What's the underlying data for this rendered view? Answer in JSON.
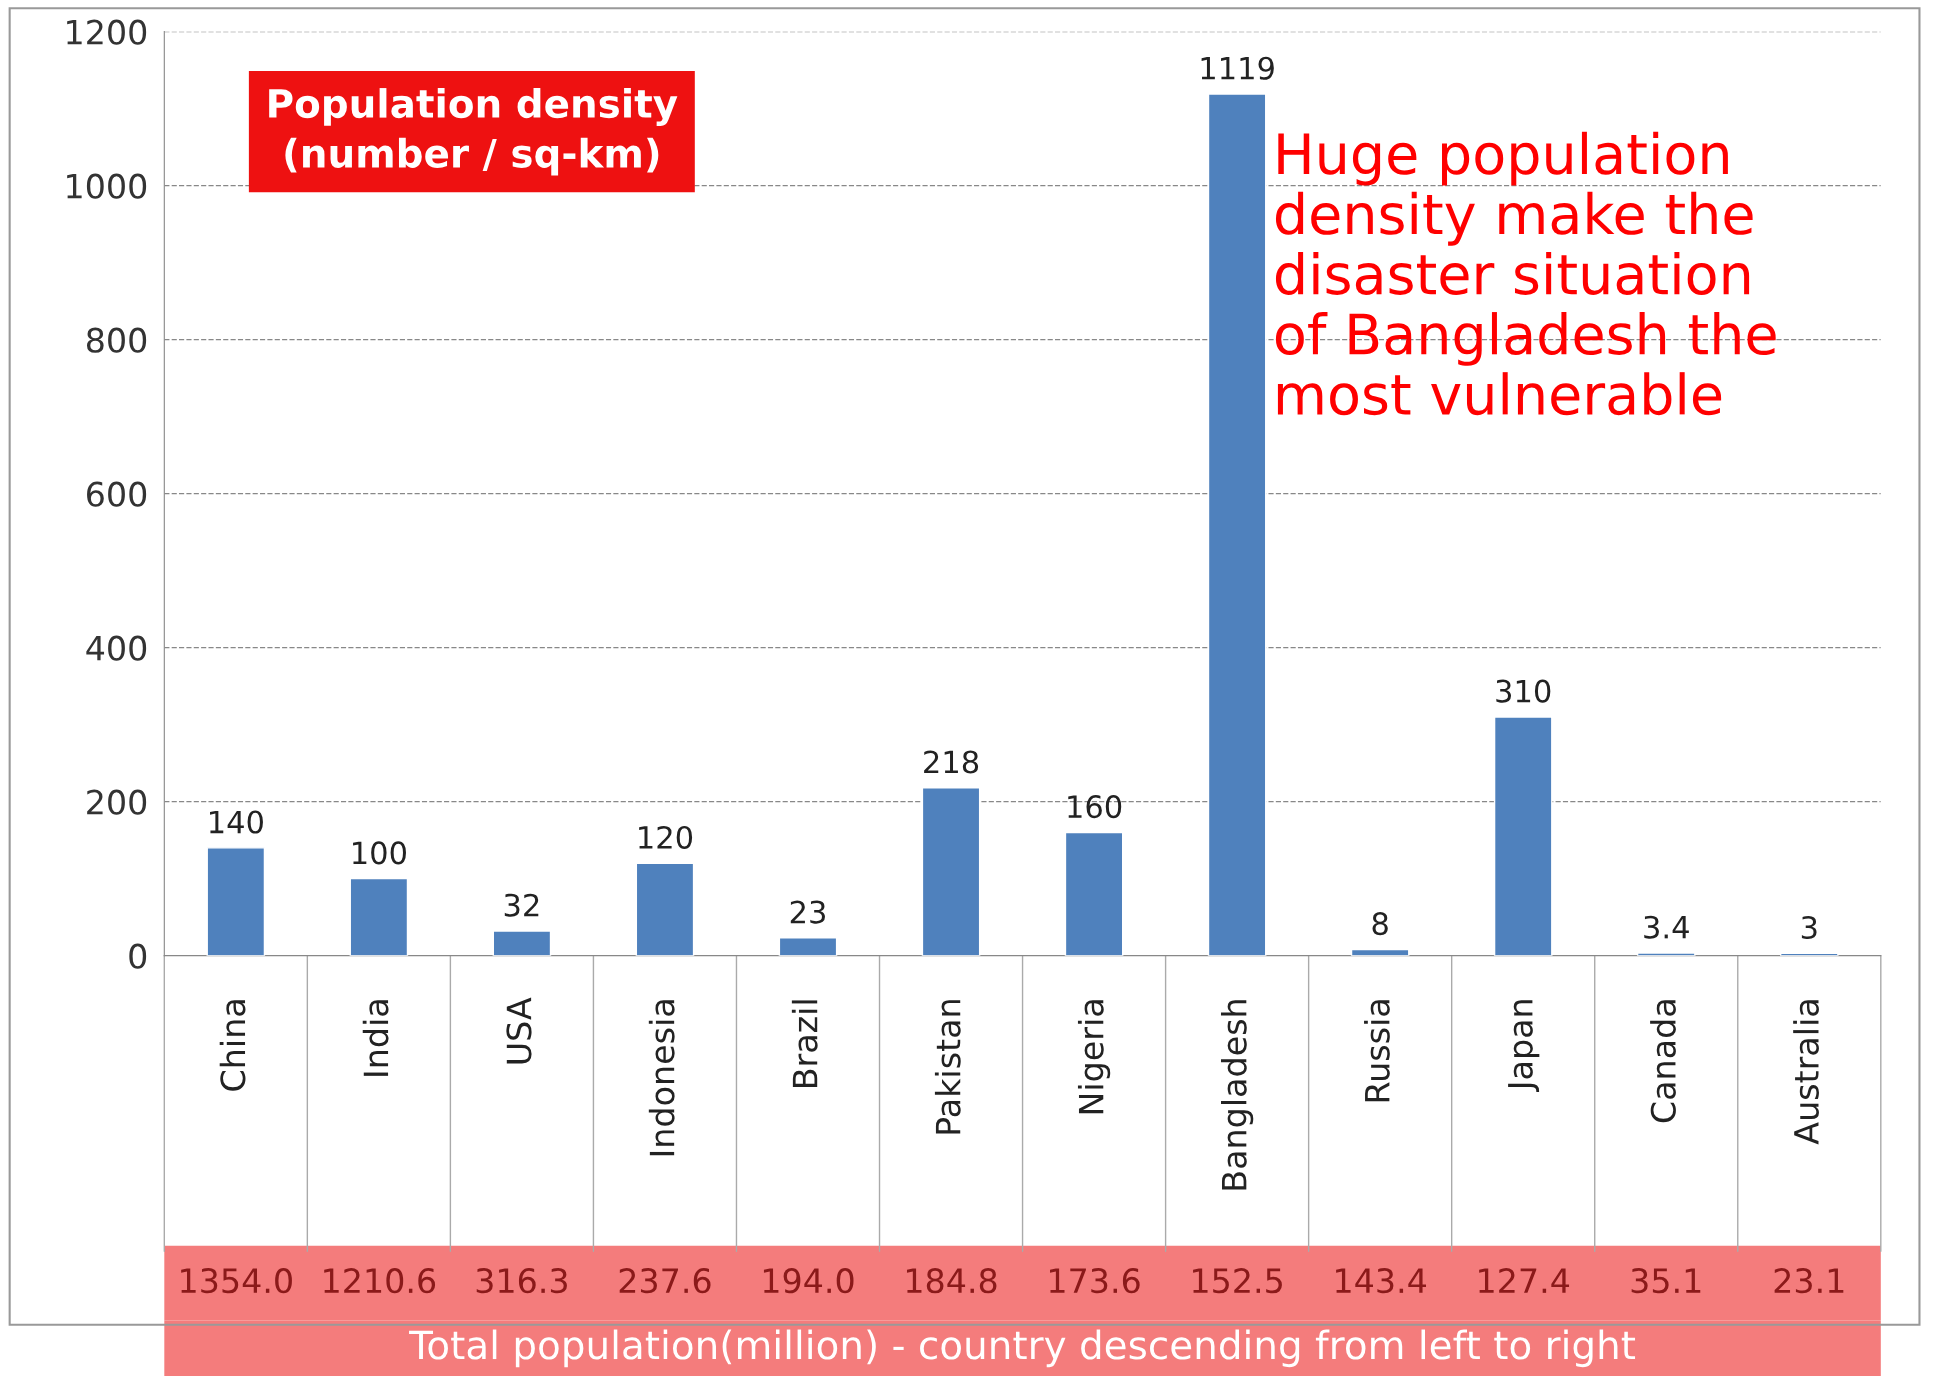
{
  "chart_data": {
    "type": "bar",
    "title": "Population density\n(number / sq-km)",
    "categories": [
      "China",
      "India",
      "USA",
      "Indonesia",
      "Brazil",
      "Pakistan",
      "Nigeria",
      "Bangladesh",
      "Russia",
      "Japan",
      "Canada",
      "Australia"
    ],
    "values": [
      140,
      100,
      32,
      120,
      23,
      218,
      160,
      1119,
      8,
      310,
      3.4,
      3
    ],
    "color": "#4f81bd",
    "data_labels": true,
    "ylim": [
      0,
      1200
    ],
    "yticks": [
      0,
      200,
      400,
      600,
      800,
      1000,
      1200
    ],
    "grid": "y",
    "xlabel": "Total population(million) - country descending from left to right",
    "annotations": [
      "Huge population\ndensity make the\ndisaster situation\nof Bangladesh the\nmost vulnerable",
      "1354.0",
      "1210.6",
      "316.3",
      "237.6",
      "194.0",
      "184.8",
      "173.6",
      "152.5",
      "143.4",
      "127.4",
      "35.1",
      "23.1"
    ]
  }
}
